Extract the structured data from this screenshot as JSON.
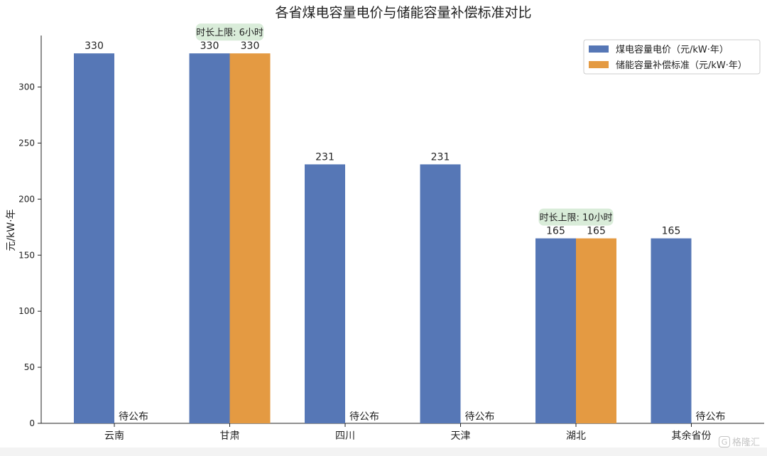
{
  "chart_data": {
    "type": "bar",
    "title": "各省煤电容量电价与储能容量补偿标准对比",
    "xlabel": "",
    "ylabel": "元/kW·年",
    "ylim": [
      0,
      340
    ],
    "yticks": [
      0,
      50,
      100,
      150,
      200,
      250,
      300
    ],
    "categories": [
      "云南",
      "甘肃",
      "四川",
      "天津",
      "湖北",
      "其余省份"
    ],
    "series": [
      {
        "name": "煤电容量电价（元/kW·年）",
        "color": "#5677b6",
        "values": [
          330,
          330,
          231,
          231,
          165,
          165
        ]
      },
      {
        "name": "储能容量补偿标准（元/kW·年）",
        "color": "#e49a42",
        "values": [
          null,
          330,
          null,
          null,
          165,
          null
        ]
      }
    ],
    "pending_label": "待公布",
    "annotations": [
      {
        "category": "甘肃",
        "text": "时长上限: 6小时"
      },
      {
        "category": "湖北",
        "text": "时长上限: 10小时"
      }
    ],
    "legend_position": "top-right",
    "grid": false
  },
  "watermark": {
    "glyph": "G",
    "text": "格隆汇"
  }
}
